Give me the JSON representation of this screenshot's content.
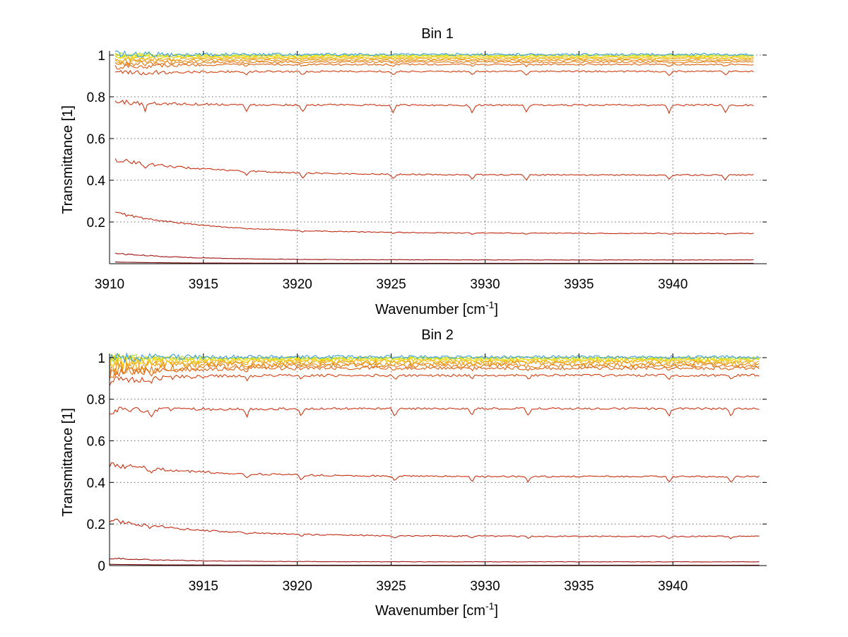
{
  "chart_data": [
    {
      "type": "line",
      "title": "Bin 1",
      "xlabel": "Wavenumber [cm",
      "xlabel_sup": "-1",
      "xlabel_tail": "]",
      "ylabel": "Transmittance [1]",
      "xlim": [
        3910,
        3945
      ],
      "ylim": [
        0,
        1.02
      ],
      "xticks": [
        "3910",
        "3915",
        "3920",
        "3925",
        "3930",
        "3935",
        "3940"
      ],
      "yticks": [
        "0.2",
        "0.4",
        "0.6",
        "0.8",
        "1"
      ],
      "grid": true,
      "x_range": [
        3910.3,
        3944.3
      ],
      "series": [
        {
          "color": "#7a0000",
          "base": 0.002,
          "start_excess": 0.006,
          "decay": 3,
          "dip": 0.0,
          "wobble": 0.0
        },
        {
          "color": "#a01010",
          "base": 0.018,
          "start_excess": 0.032,
          "decay": 4,
          "dip": 0.0,
          "wobble": 0.001
        },
        {
          "color": "#c02810",
          "base": 0.145,
          "start_excess": 0.1,
          "decay": 5,
          "dip": 0.005,
          "wobble": 0.002
        },
        {
          "color": "#c83010",
          "base": 0.425,
          "start_excess": 0.075,
          "decay": 5,
          "dip": 0.022,
          "wobble": 0.003
        },
        {
          "color": "#cc3512",
          "base": 0.76,
          "start_excess": 0.015,
          "decay": 4,
          "dip": 0.035,
          "wobble": 0.004
        },
        {
          "color": "#d24010",
          "base": 0.922,
          "start_excess": -0.01,
          "decay": 3,
          "dip": 0.018,
          "wobble": 0.004
        },
        {
          "color": "#dd6010",
          "base": 0.955,
          "start_excess": -0.01,
          "decay": 3,
          "dip": 0.008,
          "wobble": 0.004
        },
        {
          "color": "#e37a10",
          "base": 0.967,
          "start_excess": -0.01,
          "decay": 3,
          "dip": 0.006,
          "wobble": 0.004
        },
        {
          "color": "#e89015",
          "base": 0.975,
          "start_excess": -0.008,
          "decay": 3,
          "dip": 0.005,
          "wobble": 0.004
        },
        {
          "color": "#eca81a",
          "base": 0.982,
          "start_excess": -0.006,
          "decay": 3,
          "dip": 0.004,
          "wobble": 0.004
        },
        {
          "color": "#f0c01a",
          "base": 0.988,
          "start_excess": 0.0,
          "decay": 3,
          "dip": 0.003,
          "wobble": 0.004
        },
        {
          "color": "#f2d51a",
          "base": 0.993,
          "start_excess": 0.0,
          "decay": 3,
          "dip": 0.002,
          "wobble": 0.004
        },
        {
          "color": "#e6e61a",
          "base": 0.997,
          "start_excess": 0.0,
          "decay": 3,
          "dip": 0.001,
          "wobble": 0.004
        },
        {
          "color": "#b4dc3c",
          "base": 1.0,
          "start_excess": 0.0,
          "decay": 3,
          "dip": 0.0,
          "wobble": 0.004
        },
        {
          "color": "#3ca0dc",
          "base": 1.003,
          "start_excess": 0.0,
          "decay": 3,
          "dip": 0.0,
          "wobble": 0.006
        }
      ],
      "dip_positions": [
        3911.9,
        3917.3,
        3920.3,
        3925.1,
        3929.3,
        3932.2,
        3939.8,
        3942.8
      ]
    },
    {
      "type": "line",
      "title": "Bin 2",
      "xlabel": "Wavenumber [cm",
      "xlabel_sup": "-1",
      "xlabel_tail": "]",
      "ylabel": "Transmittance [1]",
      "xlim": [
        3910,
        3945
      ],
      "ylim": [
        0,
        1.02
      ],
      "xticks": [
        "3915",
        "3920",
        "3925",
        "3930",
        "3935",
        "3940"
      ],
      "yticks": [
        "0",
        "0.2",
        "0.4",
        "0.6",
        "0.8",
        "1"
      ],
      "grid": true,
      "x_range": [
        3910.0,
        3944.6
      ],
      "series": [
        {
          "color": "#7a0000",
          "base": 0.002,
          "start_excess": 0.004,
          "decay": 3,
          "dip": 0.0,
          "wobble": 0.0
        },
        {
          "color": "#a01010",
          "base": 0.018,
          "start_excess": 0.018,
          "decay": 4,
          "dip": 0.0,
          "wobble": 0.001
        },
        {
          "color": "#c02810",
          "base": 0.14,
          "start_excess": 0.08,
          "decay": 5,
          "dip": 0.01,
          "wobble": 0.003
        },
        {
          "color": "#c83010",
          "base": 0.428,
          "start_excess": 0.06,
          "decay": 5,
          "dip": 0.025,
          "wobble": 0.004
        },
        {
          "color": "#cc3512",
          "base": 0.755,
          "start_excess": -0.01,
          "decay": 4,
          "dip": 0.035,
          "wobble": 0.005
        },
        {
          "color": "#d24010",
          "base": 0.915,
          "start_excess": -0.03,
          "decay": 3,
          "dip": 0.018,
          "wobble": 0.006
        },
        {
          "color": "#dd6010",
          "base": 0.95,
          "start_excess": -0.03,
          "decay": 3,
          "dip": 0.008,
          "wobble": 0.008
        },
        {
          "color": "#e37a10",
          "base": 0.962,
          "start_excess": -0.03,
          "decay": 3,
          "dip": 0.006,
          "wobble": 0.01
        },
        {
          "color": "#e89015",
          "base": 0.972,
          "start_excess": -0.02,
          "decay": 3,
          "dip": 0.005,
          "wobble": 0.012
        },
        {
          "color": "#eca81a",
          "base": 0.98,
          "start_excess": -0.01,
          "decay": 3,
          "dip": 0.004,
          "wobble": 0.012
        },
        {
          "color": "#f0c01a",
          "base": 0.986,
          "start_excess": 0.0,
          "decay": 3,
          "dip": 0.003,
          "wobble": 0.01
        },
        {
          "color": "#f2d51a",
          "base": 0.991,
          "start_excess": 0.0,
          "decay": 3,
          "dip": 0.002,
          "wobble": 0.008
        },
        {
          "color": "#e6e61a",
          "base": 0.995,
          "start_excess": 0.0,
          "decay": 3,
          "dip": 0.001,
          "wobble": 0.006
        },
        {
          "color": "#b4dc3c",
          "base": 0.999,
          "start_excess": 0.0,
          "decay": 3,
          "dip": 0.0,
          "wobble": 0.006
        },
        {
          "color": "#3ca0dc",
          "base": 1.003,
          "start_excess": 0.0,
          "decay": 3,
          "dip": 0.0,
          "wobble": 0.008
        }
      ],
      "dip_positions": [
        3912.2,
        3917.3,
        3920.2,
        3925.2,
        3929.3,
        3932.3,
        3939.8,
        3943.1
      ]
    }
  ]
}
